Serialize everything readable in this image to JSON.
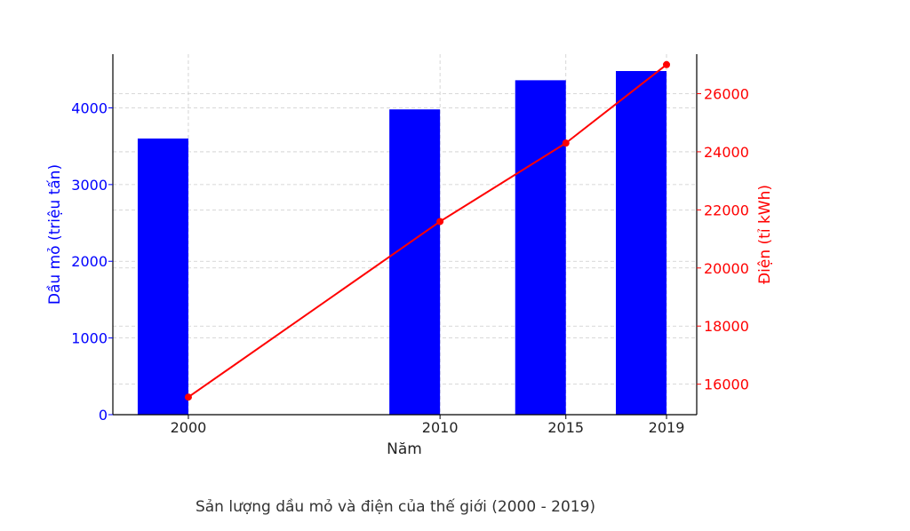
{
  "caption": "Sản lượng dầu mỏ và điện của thế giới (2000 - 2019)",
  "chart_data": {
    "type": "bar",
    "x": [
      2000,
      2010,
      2015,
      2019
    ],
    "xlabel": "Năm",
    "x_tick_labels": [
      "2000",
      "2010",
      "2015",
      "2019"
    ],
    "grid": true,
    "series": [
      {
        "type": "bar",
        "axis": "left",
        "color": "#0000ff",
        "values": [
          3600,
          3980,
          4360,
          4480
        ]
      },
      {
        "type": "line",
        "axis": "right",
        "color": "#ff0000",
        "marker": "circle",
        "values": [
          15555,
          21600,
          24300,
          27000
        ]
      }
    ],
    "y_left": {
      "label": "Dầu mỏ (triệu tấn)",
      "color": "#0000ff",
      "ylim": [
        0,
        4700
      ],
      "ticks": [
        0,
        1000,
        2000,
        3000,
        4000
      ],
      "tick_labels": [
        "0",
        "1000",
        "2000",
        "3000",
        "4000"
      ]
    },
    "y_right": {
      "label": "Điện (tỉ kWh)",
      "color": "#ff0000",
      "ylim": [
        14950,
        27360
      ],
      "ticks": [
        16000,
        18000,
        20000,
        22000,
        24000,
        26000
      ],
      "tick_labels": [
        "16000",
        "18000",
        "20000",
        "22000",
        "24000",
        "26000"
      ]
    }
  }
}
